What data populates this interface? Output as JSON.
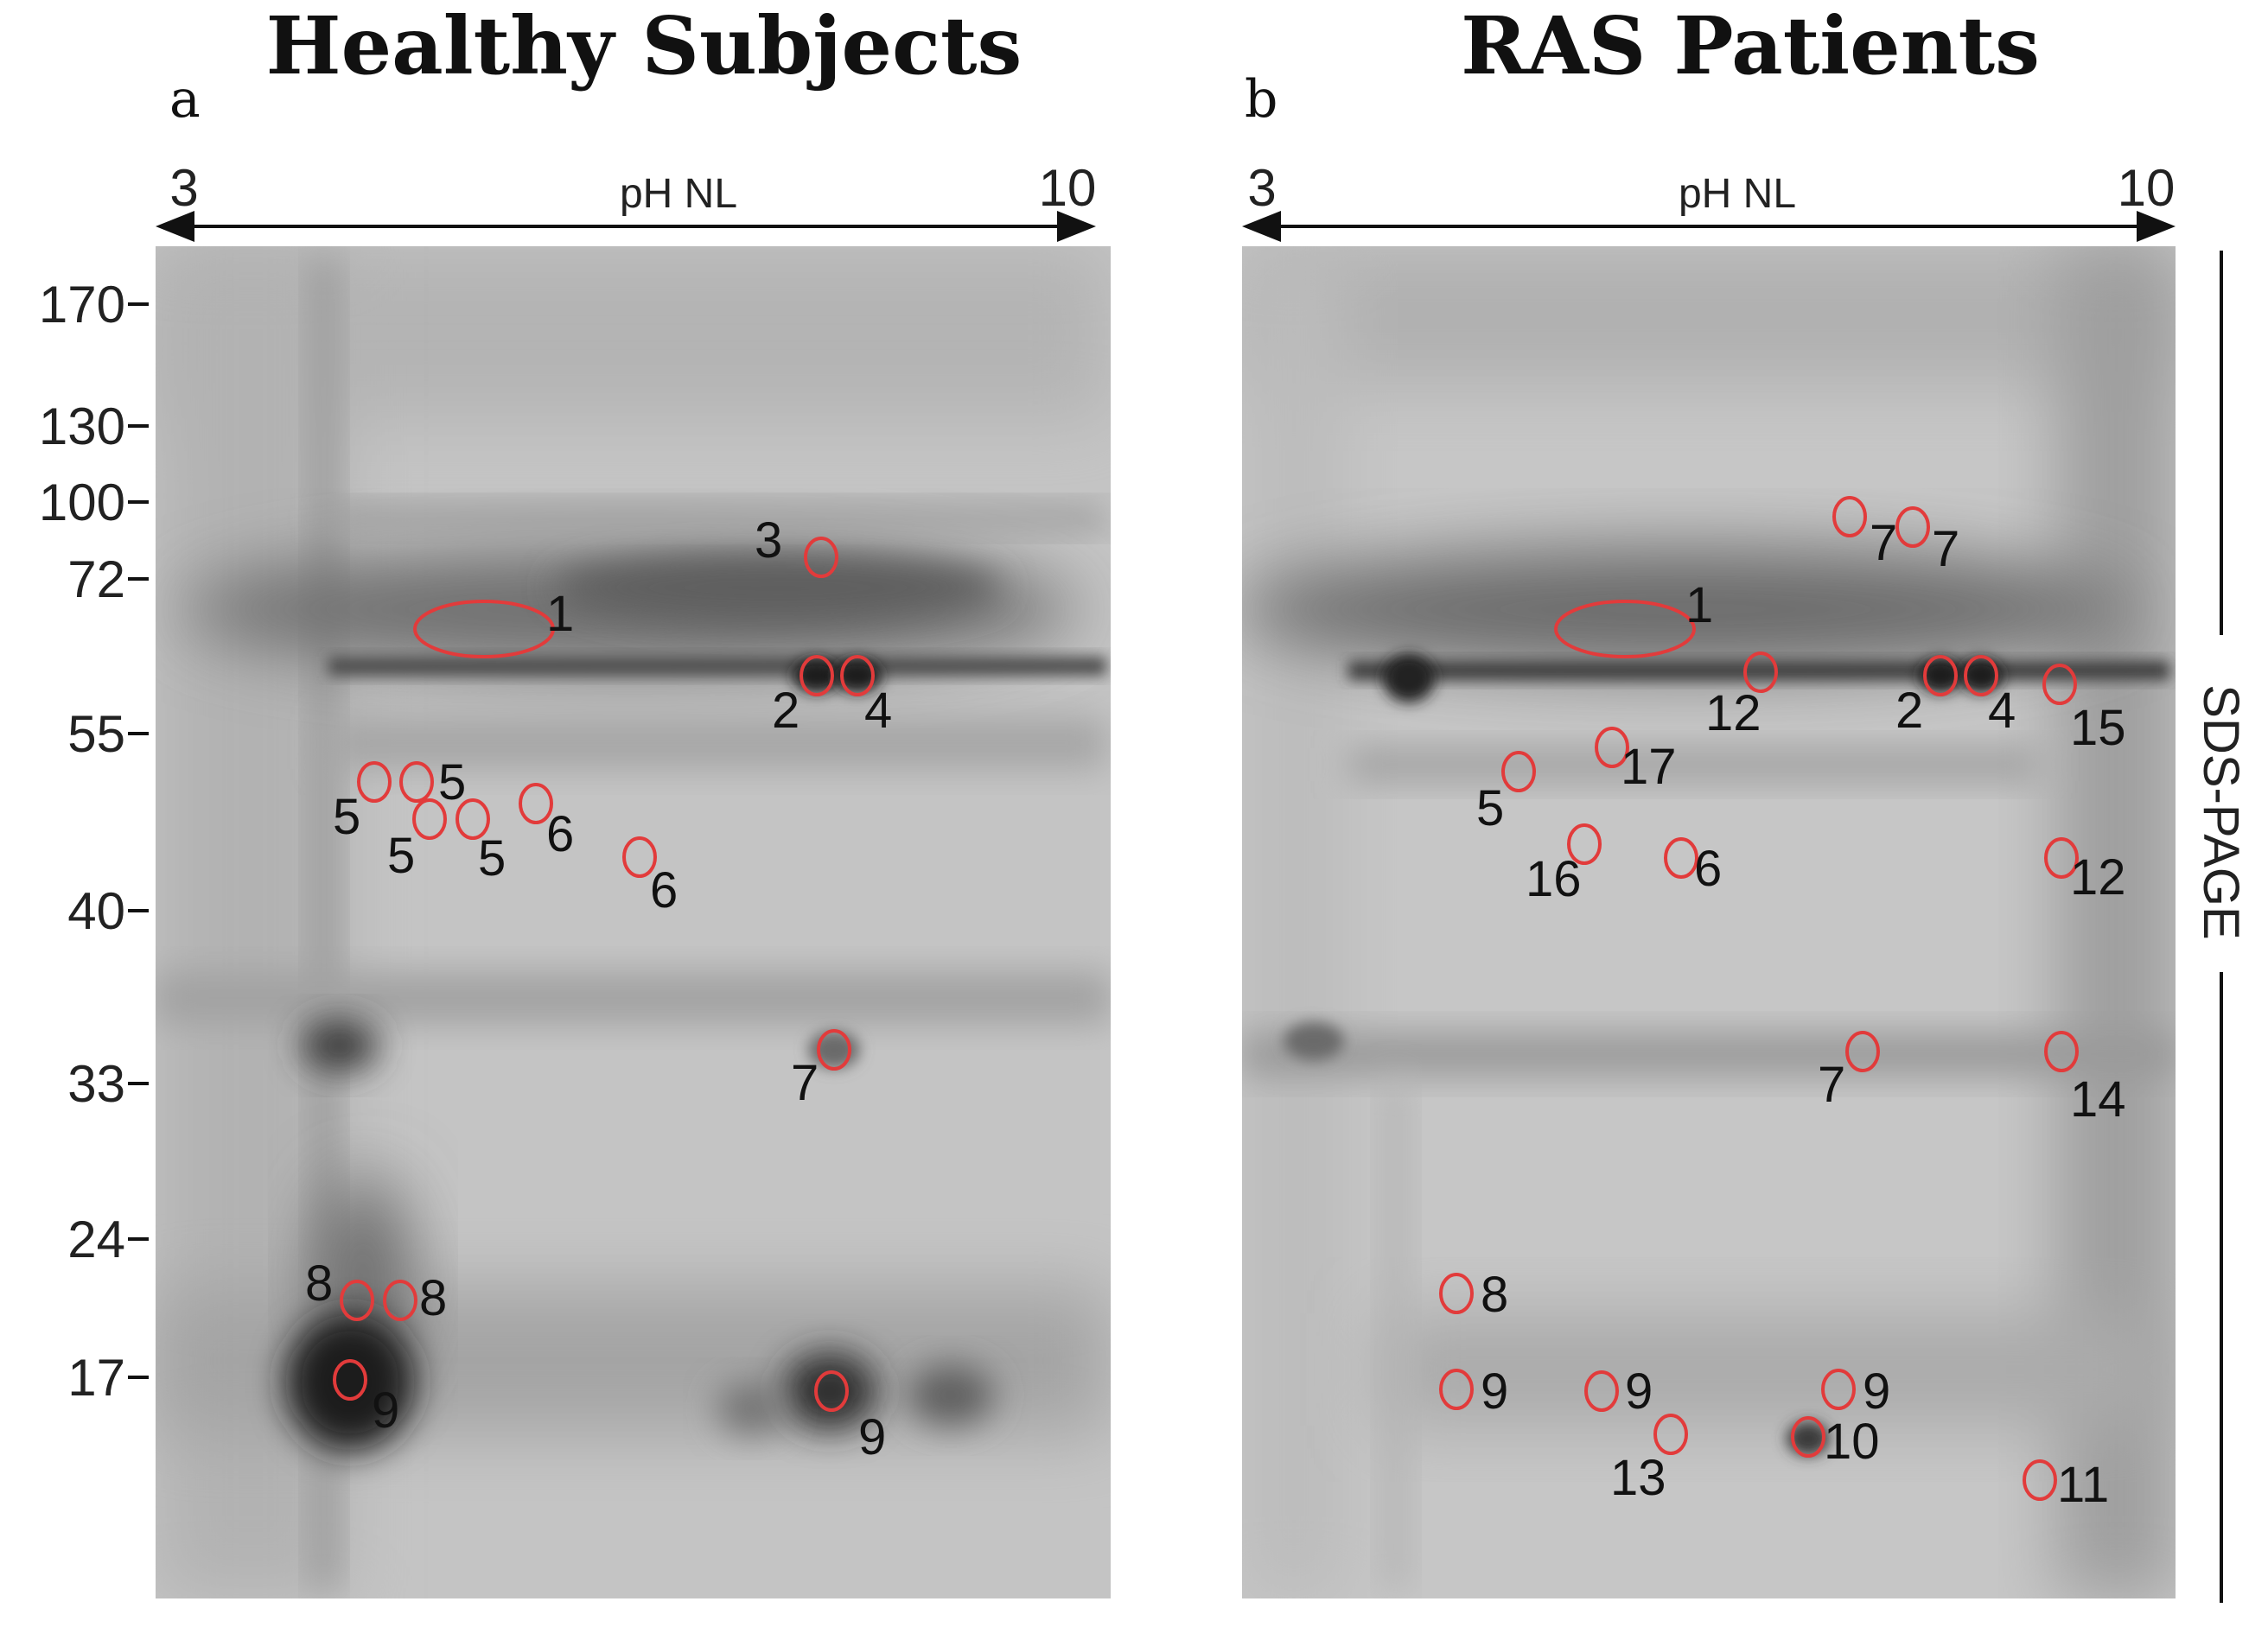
{
  "panels": [
    {
      "id": "a",
      "title": "Healthy Subjects",
      "label": "a",
      "ph_left": "3",
      "ph_right": "10",
      "ph_label": "pH NL",
      "spot_labels": [
        "1",
        "2",
        "3",
        "4",
        "5",
        "5",
        "5",
        "5",
        "6",
        "6",
        "7",
        "8",
        "8",
        "9",
        "9"
      ]
    },
    {
      "id": "b",
      "title": "RAS Patients",
      "label": "b",
      "ph_left": "3",
      "ph_right": "10",
      "ph_label": "pH NL",
      "spot_labels": [
        "1",
        "2",
        "4",
        "5",
        "6",
        "7",
        "7",
        "7",
        "8",
        "9",
        "9",
        "9",
        "10",
        "11",
        "12",
        "12",
        "13",
        "14",
        "15",
        "16",
        "17"
      ]
    }
  ],
  "mw_markers": [
    "170",
    "130",
    "100",
    "72",
    "55",
    "40",
    "33",
    "24",
    "17"
  ],
  "sds_label": "SDS-PAGE",
  "colors": {
    "circle": "#e23b3b",
    "text": "#111111"
  }
}
